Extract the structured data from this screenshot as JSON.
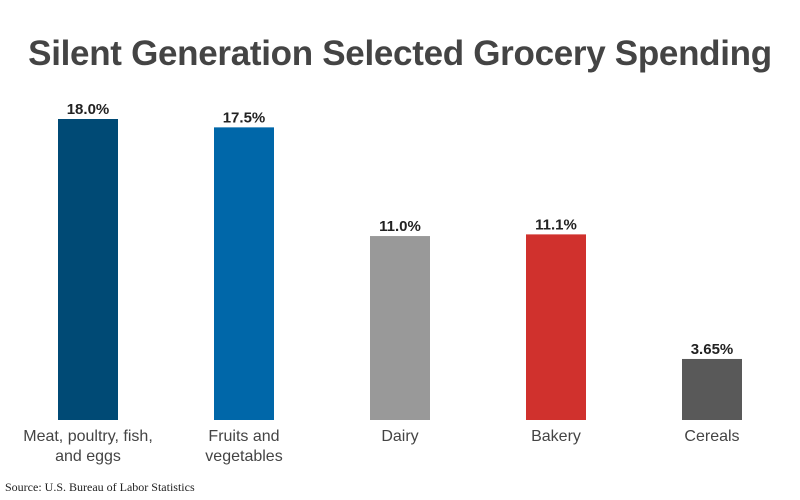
{
  "chart_data": {
    "type": "bar",
    "title": "Silent Generation Selected Grocery Spending",
    "categories": [
      "Meat, poultry, fish, and eggs",
      "Fruits and vegetables",
      "Dairy",
      "Bakery",
      "Cereals"
    ],
    "values": [
      18.0,
      17.5,
      11.0,
      11.1,
      3.65
    ],
    "data_labels": [
      "18.0%",
      "17.5%",
      "11.0%",
      "11.1%",
      "3.65%"
    ],
    "colors": [
      "#004a75",
      "#0067a9",
      "#999999",
      "#d0312d",
      "#595959"
    ],
    "xlabel": "",
    "ylabel": "",
    "ylim": [
      0,
      18
    ],
    "grid": false
  },
  "source": "Source: U.S. Bureau of Labor Statistics"
}
